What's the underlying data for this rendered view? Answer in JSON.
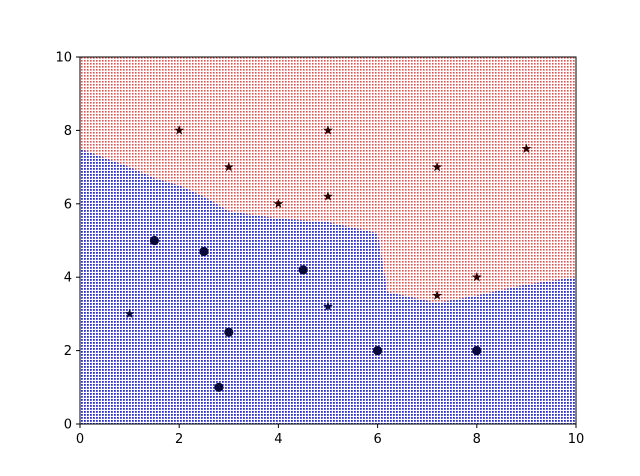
{
  "chart_data": {
    "type": "scatter",
    "title": "",
    "xlabel": "",
    "ylabel": "",
    "xlim": [
      0,
      10
    ],
    "ylim": [
      0,
      10
    ],
    "grid": false,
    "xticks": [
      "0",
      "2",
      "4",
      "6",
      "8",
      "10"
    ],
    "yticks": [
      "0",
      "2",
      "4",
      "6",
      "8",
      "10"
    ],
    "decision_regions": {
      "colors": {
        "class_0": "#0000ff",
        "class_1": "#ff0000"
      },
      "boundary": [
        [
          0,
          7.5
        ],
        [
          1,
          7.0
        ],
        [
          1.5,
          6.7
        ],
        [
          2.0,
          6.5
        ],
        [
          2.5,
          6.2
        ],
        [
          3.0,
          5.8
        ],
        [
          4.0,
          5.6
        ],
        [
          5.0,
          5.5
        ],
        [
          6.0,
          5.2
        ],
        [
          6.2,
          3.6
        ],
        [
          7.2,
          3.3
        ],
        [
          8.0,
          3.5
        ],
        [
          9.0,
          3.8
        ],
        [
          10,
          4.0
        ]
      ]
    },
    "series": [
      {
        "marker": "circle",
        "color": "#0a0a3a",
        "points": [
          [
            1.5,
            5.0
          ],
          [
            2.5,
            4.7
          ],
          [
            3.0,
            2.5
          ],
          [
            2.8,
            1.0
          ],
          [
            4.5,
            4.2
          ],
          [
            6.0,
            2.0
          ],
          [
            8.0,
            2.0
          ]
        ]
      },
      {
        "marker": "star",
        "color": "#0a0a3a",
        "points": [
          [
            1.0,
            3.0
          ],
          [
            5.0,
            3.2
          ]
        ]
      },
      {
        "marker": "star",
        "color": "#2a0000",
        "points": [
          [
            2.0,
            8.0
          ],
          [
            5.0,
            8.0
          ],
          [
            3.0,
            7.0
          ],
          [
            7.2,
            7.0
          ],
          [
            9.0,
            7.5
          ],
          [
            4.0,
            6.0
          ],
          [
            5.0,
            6.2
          ],
          [
            8.0,
            4.0
          ],
          [
            7.2,
            3.5
          ]
        ]
      }
    ]
  }
}
